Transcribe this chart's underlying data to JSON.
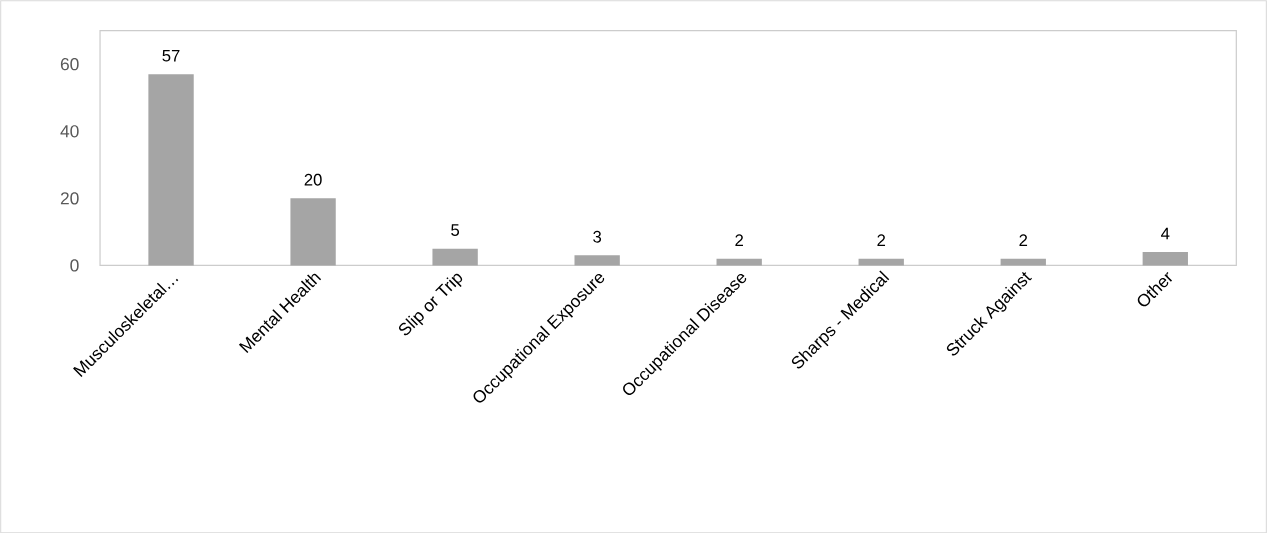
{
  "chart_data": {
    "type": "bar",
    "categories": [
      "Musculoskeletal…",
      "Mental Health",
      "Slip or Trip",
      "Occupational Exposure",
      "Occupational Disease",
      "Sharps - Medical",
      "Struck Against",
      "Other"
    ],
    "values": [
      57,
      20,
      5,
      3,
      2,
      2,
      2,
      4
    ],
    "color": "#a5a5a5",
    "ylim": [
      0,
      70
    ],
    "yticks": [
      0,
      20,
      40,
      60
    ],
    "data_labels": true,
    "grid": false
  }
}
